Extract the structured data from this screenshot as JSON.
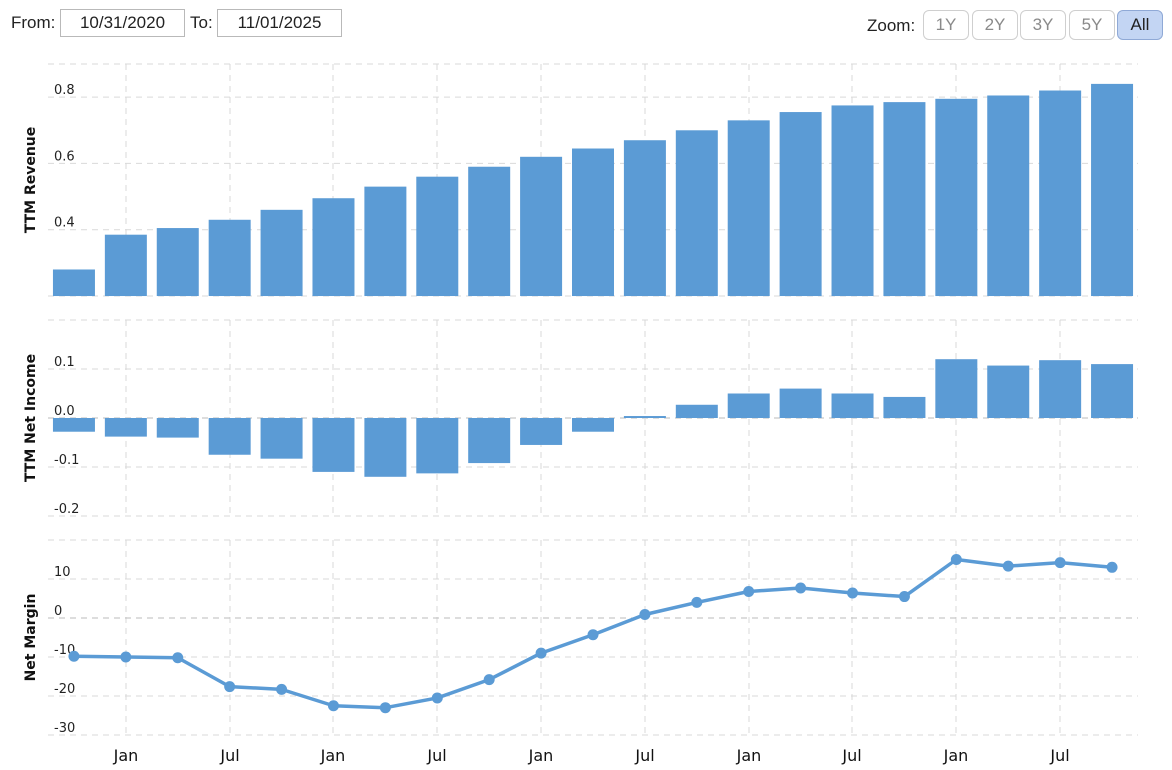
{
  "range": {
    "from_label": "From:",
    "from_value": "10/31/2020",
    "to_label": "To:",
    "to_value": "11/01/2025"
  },
  "zoom": {
    "label": "Zoom:",
    "buttons": [
      "1Y",
      "2Y",
      "3Y",
      "5Y",
      "All"
    ],
    "active": "All"
  },
  "colors": {
    "bar": "#5b9bd5",
    "line": "#5b9bd5",
    "grid": "#d9d9d9",
    "zero": "#bbbbbb"
  },
  "chart_data": [
    {
      "type": "bar",
      "ylabel": "TTM Revenue",
      "ylim": [
        0.2,
        0.9
      ],
      "yticks": [
        "0.2",
        "0.4",
        "0.6",
        "0.8"
      ],
      "x": [
        "Q4 2020",
        "Q1 2021",
        "Q2 2021",
        "Q3 2021",
        "Q4 2021",
        "Q1 2022",
        "Q2 2022",
        "Q3 2022",
        "Q4 2022",
        "Q1 2023",
        "Q2 2023",
        "Q3 2023",
        "Q4 2023",
        "Q1 2024",
        "Q2 2024",
        "Q3 2024",
        "Q4 2024",
        "Q1 2025",
        "Q2 2025",
        "Q3 2025",
        "Q4 2025"
      ],
      "values": [
        0.28,
        0.385,
        0.405,
        0.43,
        0.46,
        0.495,
        0.53,
        0.56,
        0.59,
        0.62,
        0.645,
        0.67,
        0.7,
        0.73,
        0.755,
        0.775,
        0.785,
        0.795,
        0.805,
        0.82,
        0.84
      ]
    },
    {
      "type": "bar",
      "ylabel": "TTM Net Income",
      "ylim": [
        -0.2,
        0.2
      ],
      "yticks": [
        "-0.2",
        "-0.1",
        "0.0",
        "0.1"
      ],
      "x": [
        "Q4 2020",
        "Q1 2021",
        "Q2 2021",
        "Q3 2021",
        "Q4 2021",
        "Q1 2022",
        "Q2 2022",
        "Q3 2022",
        "Q4 2022",
        "Q1 2023",
        "Q2 2023",
        "Q3 2023",
        "Q4 2023",
        "Q1 2024",
        "Q2 2024",
        "Q3 2024",
        "Q4 2024",
        "Q1 2025",
        "Q2 2025",
        "Q3 2025",
        "Q4 2025"
      ],
      "values": [
        -0.028,
        -0.038,
        -0.04,
        -0.075,
        -0.083,
        -0.11,
        -0.12,
        -0.113,
        -0.092,
        -0.055,
        -0.028,
        0.004,
        0.027,
        0.05,
        0.06,
        0.05,
        0.043,
        0.12,
        0.107,
        0.118,
        0.11
      ]
    },
    {
      "type": "line",
      "ylabel": "Net Margin",
      "ylim": [
        -30,
        20
      ],
      "yticks": [
        "-30",
        "-20",
        "-10",
        "0",
        "10"
      ],
      "x": [
        "Q4 2020",
        "Q1 2021",
        "Q2 2021",
        "Q3 2021",
        "Q4 2021",
        "Q1 2022",
        "Q2 2022",
        "Q3 2022",
        "Q4 2022",
        "Q1 2023",
        "Q2 2023",
        "Q3 2023",
        "Q4 2023",
        "Q1 2024",
        "Q2 2024",
        "Q3 2024",
        "Q4 2024",
        "Q1 2025",
        "Q2 2025",
        "Q3 2025",
        "Q4 2025"
      ],
      "values": [
        -9.8,
        -10.0,
        -10.2,
        -17.6,
        -18.3,
        -22.5,
        -23.0,
        -20.5,
        -15.8,
        -9.0,
        -4.3,
        0.9,
        4.0,
        6.8,
        7.7,
        6.4,
        5.5,
        15.0,
        13.3,
        14.2,
        13.0
      ]
    }
  ],
  "x_axis": {
    "labels": [
      "Jan",
      "Jul",
      "Jan",
      "Jul",
      "Jan",
      "Jul",
      "Jan",
      "Jul",
      "Jan",
      "Jul"
    ]
  }
}
